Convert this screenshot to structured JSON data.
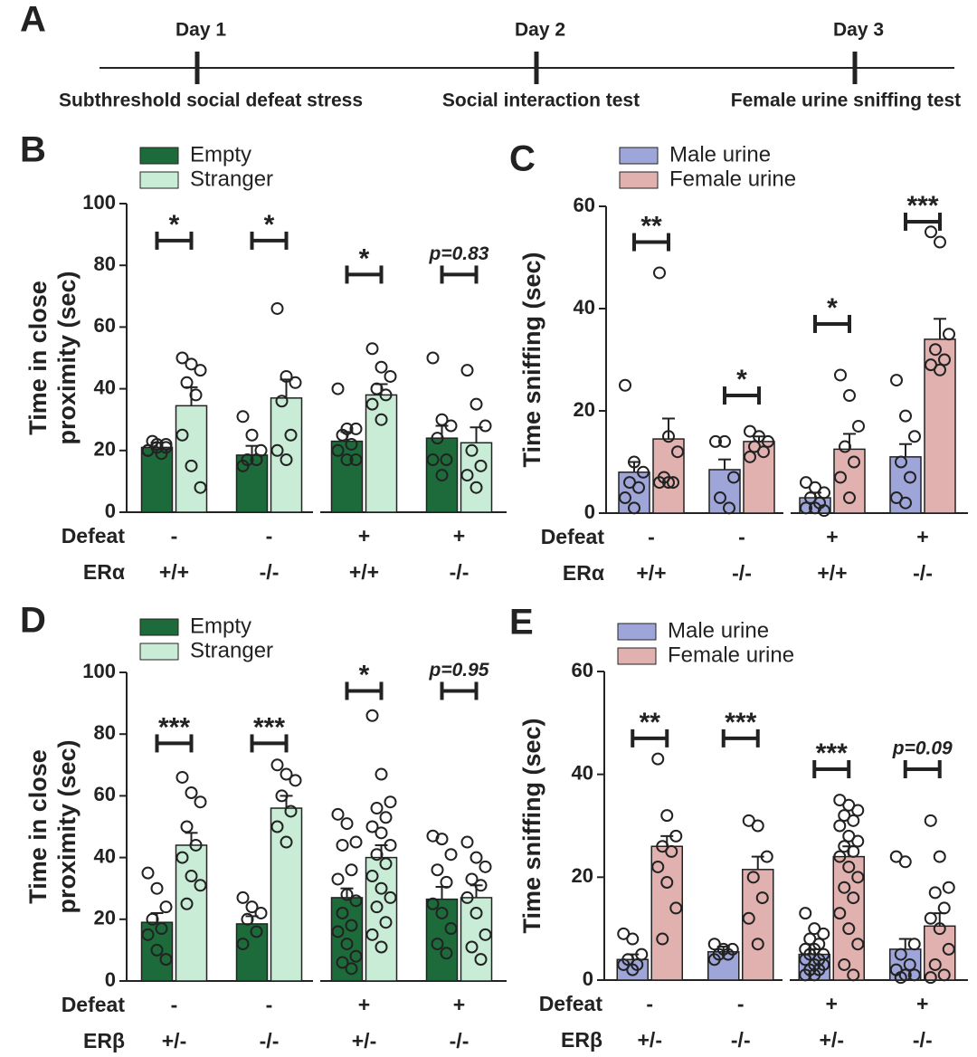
{
  "timeline": {
    "label": "A",
    "events": [
      {
        "day": "Day 1",
        "description": "Subthreshold social defeat stress"
      },
      {
        "day": "Day 2",
        "description": "Social interaction test"
      },
      {
        "day": "Day 3",
        "description": "Female urine sniffing test"
      }
    ]
  },
  "chart_data": [
    {
      "type": "bar",
      "label": "B",
      "ylabel": [
        "Time in close",
        "proximity (sec)"
      ],
      "ylim": [
        0,
        100
      ],
      "yticks": [
        0,
        20,
        40,
        60,
        80,
        100
      ],
      "rows": [
        {
          "label": "Defeat",
          "values": [
            "-",
            "-",
            "+",
            "+"
          ]
        },
        {
          "label": "ERα",
          "values": [
            "+/+",
            "-/-",
            "+/+",
            "-/-"
          ]
        }
      ],
      "series": [
        {
          "name": "Empty",
          "color": "#1d6b3b",
          "values": [
            21,
            18.5,
            23,
            24
          ],
          "errors": [
            1.5,
            3,
            3,
            4
          ],
          "points": [
            [
              20,
              21,
              22,
              23,
              19,
              20,
              22,
              21
            ],
            [
              31,
              25,
              20,
              17,
              17,
              15
            ],
            [
              40,
              27,
              27,
              25,
              22,
              20,
              17,
              17
            ],
            [
              50,
              30,
              28,
              24,
              17,
              17,
              12
            ]
          ]
        },
        {
          "name": "Stranger",
          "color": "#c9ecd7",
          "values": [
            34.5,
            37,
            38,
            22.5
          ],
          "errors": [
            6,
            6,
            3.5,
            5
          ],
          "points": [
            [
              50,
              48,
              46,
              42,
              38,
              25,
              15,
              8
            ],
            [
              66,
              44,
              42,
              36,
              25,
              20,
              17
            ],
            [
              53,
              47,
              44,
              40,
              38,
              35,
              30
            ],
            [
              46,
              35,
              28,
              20,
              15,
              12,
              8
            ]
          ]
        }
      ],
      "annotations": [
        {
          "label": "*",
          "y": 88
        },
        {
          "label": "*",
          "y": 88
        },
        {
          "label": "*",
          "y": 77
        },
        {
          "label": "p=0.83",
          "y": 77
        }
      ]
    },
    {
      "type": "bar",
      "label": "C",
      "ylabel": [
        "Time sniffing (sec)"
      ],
      "ylim": [
        0,
        60
      ],
      "yticks": [
        0,
        20,
        40,
        60
      ],
      "rows": [
        {
          "label": "Defeat",
          "values": [
            "-",
            "-",
            "+",
            "+"
          ]
        },
        {
          "label": "ERα",
          "values": [
            "+/+",
            "-/-",
            "+/+",
            "-/-"
          ]
        }
      ],
      "series": [
        {
          "name": "Male urine",
          "color": "#9ea5d9",
          "values": [
            8,
            8.5,
            3,
            11
          ],
          "errors": [
            2,
            2,
            1,
            2.5
          ],
          "points": [
            [
              25,
              10,
              8,
              6,
              5,
              3,
              1
            ],
            [
              14,
              14,
              7,
              3,
              1
            ],
            [
              6,
              5,
              4,
              3,
              2,
              1,
              1,
              0.5
            ],
            [
              26,
              19,
              15,
              10,
              7,
              3,
              2
            ]
          ]
        },
        {
          "name": "Female urine",
          "color": "#e1b1af",
          "values": [
            14.5,
            14,
            12.5,
            34
          ],
          "errors": [
            4,
            1,
            3,
            4
          ],
          "points": [
            [
              47,
              15,
              12,
              7,
              6,
              6,
              6
            ],
            [
              16,
              15,
              14,
              13,
              12,
              11
            ],
            [
              27,
              23,
              17,
              13,
              10,
              7,
              3
            ],
            [
              55,
              53,
              35,
              32,
              30,
              29,
              28
            ]
          ]
        }
      ],
      "annotations": [
        {
          "label": "**",
          "y": 53
        },
        {
          "label": "*",
          "y": 23
        },
        {
          "label": "*",
          "y": 37
        },
        {
          "label": "***",
          "y": 57
        }
      ]
    },
    {
      "type": "bar",
      "label": "D",
      "ylabel": [
        "Time in close",
        "proximity (sec)"
      ],
      "ylim": [
        0,
        100
      ],
      "yticks": [
        0,
        20,
        40,
        60,
        80,
        100
      ],
      "rows": [
        {
          "label": "Defeat",
          "values": [
            "-",
            "-",
            "+",
            "+"
          ]
        },
        {
          "label": "ERβ",
          "values": [
            "+/-",
            "-/-",
            "+/-",
            "-/-"
          ]
        }
      ],
      "series": [
        {
          "name": "Empty",
          "color": "#1d6b3b",
          "values": [
            19,
            18.5,
            27,
            26.5
          ],
          "errors": [
            3,
            2.5,
            3,
            4
          ],
          "points": [
            [
              35,
              30,
              24,
              20,
              17,
              15,
              10,
              7
            ],
            [
              27,
              24,
              22,
              20,
              16,
              12
            ],
            [
              54,
              51,
              45,
              44,
              36,
              33,
              28,
              26,
              22,
              18,
              16,
              12,
              8,
              6,
              4
            ],
            [
              47,
              46,
              41,
              36,
              32,
              25,
              22,
              17,
              12,
              9
            ]
          ]
        },
        {
          "name": "Stranger",
          "color": "#c9ecd7",
          "values": [
            44,
            56,
            40,
            27
          ],
          "errors": [
            4,
            4,
            4,
            4
          ],
          "points": [
            [
              66,
              61,
              58,
              50,
              44,
              40,
              34,
              31,
              25
            ],
            [
              70,
              67,
              65,
              60,
              55,
              50,
              45
            ],
            [
              86,
              67,
              58,
              56,
              53,
              50,
              48,
              44,
              41,
              38,
              34,
              30,
              27,
              24,
              19,
              15,
              11
            ],
            [
              45,
              40,
              37,
              33,
              31,
              27,
              22,
              15,
              11,
              7
            ]
          ]
        }
      ],
      "annotations": [
        {
          "label": "***",
          "y": 77
        },
        {
          "label": "***",
          "y": 77
        },
        {
          "label": "*",
          "y": 94
        },
        {
          "label": "p=0.95",
          "y": 94
        }
      ]
    },
    {
      "type": "bar",
      "label": "E",
      "ylabel": [
        "Time sniffing (sec)"
      ],
      "ylim": [
        0,
        60
      ],
      "yticks": [
        0,
        20,
        40,
        60
      ],
      "rows": [
        {
          "label": "Defeat",
          "values": [
            "-",
            "-",
            "+",
            "+"
          ]
        },
        {
          "label": "ERβ",
          "values": [
            "+/-",
            "-/-",
            "+/-",
            "-/-"
          ]
        }
      ],
      "series": [
        {
          "name": "Male urine",
          "color": "#9ea5d9",
          "values": [
            4,
            5.5,
            5,
            6
          ],
          "errors": [
            1,
            1,
            1,
            2
          ],
          "points": [
            [
              9,
              8,
              5,
              4,
              3,
              3,
              2
            ],
            [
              7,
              6,
              6,
              5,
              5,
              4
            ],
            [
              13,
              10,
              9,
              8,
              7,
              6,
              6,
              5,
              5,
              4,
              4,
              3,
              3,
              2,
              2,
              1,
              1
            ],
            [
              24,
              23,
              7,
              5,
              3,
              2,
              1,
              1,
              0.5
            ]
          ]
        },
        {
          "name": "Female urine",
          "color": "#e1b1af",
          "values": [
            26,
            21.5,
            24,
            10.5
          ],
          "errors": [
            2,
            2.5,
            2,
            2.5
          ],
          "points": [
            [
              43,
              32,
              28,
              26,
              25,
              22,
              19,
              14,
              8
            ],
            [
              31,
              30,
              24,
              20,
              16,
              12,
              7
            ],
            [
              35,
              34,
              33,
              32,
              31,
              30,
              28,
              27,
              26,
              25,
              24,
              22,
              20,
              18,
              16,
              13,
              10,
              7,
              3,
              1
            ],
            [
              31,
              24,
              18,
              17,
              14,
              12,
              10,
              6,
              3,
              1,
              0.5
            ]
          ]
        }
      ],
      "annotations": [
        {
          "label": "**",
          "y": 47
        },
        {
          "label": "***",
          "y": 47
        },
        {
          "label": "***",
          "y": 41
        },
        {
          "label": "p=0.09",
          "y": 41
        }
      ]
    }
  ]
}
